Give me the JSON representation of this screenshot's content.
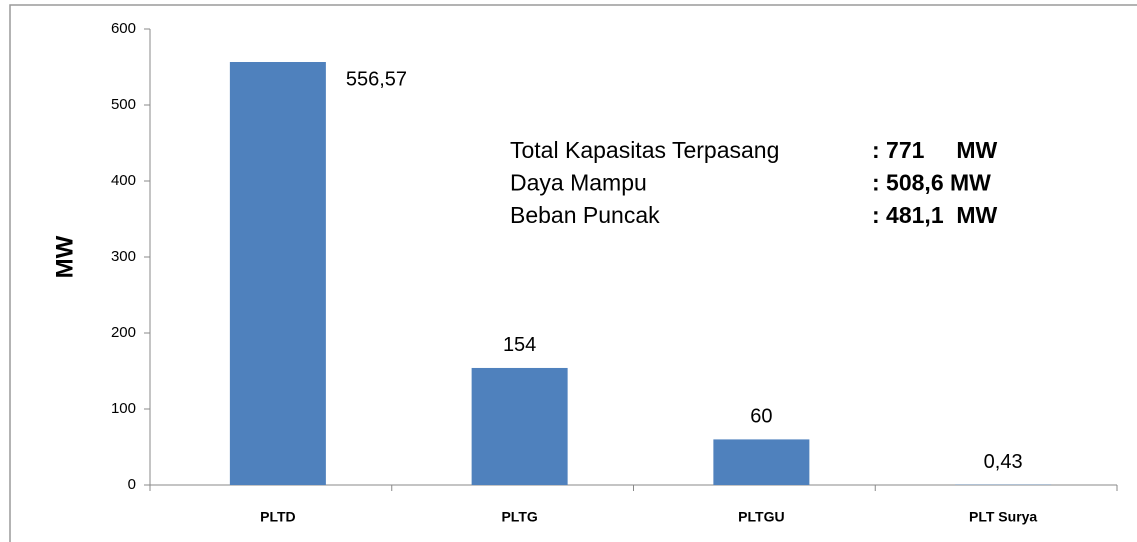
{
  "chart_data": {
    "type": "bar",
    "y_label": "MW",
    "categories": [
      "PLTD",
      "PLTG",
      "PLTGU",
      "PLT Surya"
    ],
    "values": [
      556.57,
      154,
      60,
      0.43
    ],
    "value_labels": [
      "556,57",
      "154",
      "60",
      "0,43"
    ],
    "color": "#4f81bd",
    "ylim": [
      0,
      600
    ],
    "yticks": [
      0,
      100,
      200,
      300,
      400,
      500,
      600
    ],
    "grid": false,
    "annotations": [
      {
        "text": "Total Kapasitas Terpasang",
        "value": ": 771     MW"
      },
      {
        "text": "Daya Mampu",
        "value": ": 508,6 MW"
      },
      {
        "text": "Beban Puncak",
        "value": ": 481,1  MW"
      }
    ]
  }
}
